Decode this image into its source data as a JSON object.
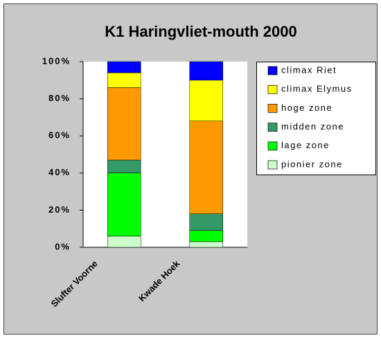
{
  "chart_data": {
    "type": "stacked_bar",
    "title": "K1 Haringvliet-mouth 2000",
    "categories": [
      "Slufter Voorne",
      "Kwade Hoek"
    ],
    "series": [
      {
        "name": "pionier zone",
        "color": "#ccffcc",
        "values": [
          6,
          3
        ]
      },
      {
        "name": "lage zone",
        "color": "#00ff00",
        "values": [
          34,
          6
        ]
      },
      {
        "name": "midden zone",
        "color": "#339966",
        "values": [
          7,
          9
        ]
      },
      {
        "name": "hoge zone",
        "color": "#ff9900",
        "values": [
          39,
          50
        ]
      },
      {
        "name": "climax Elymus",
        "color": "#ffff00",
        "values": [
          8,
          22
        ]
      },
      {
        "name": "climax Riet",
        "color": "#0000ff",
        "values": [
          6,
          10
        ]
      }
    ],
    "ylim": [
      0,
      100
    ],
    "yticks": [
      {
        "value": 0,
        "label": "0%"
      },
      {
        "value": 20,
        "label": "20%"
      },
      {
        "value": 40,
        "label": "40%"
      },
      {
        "value": 60,
        "label": "60%"
      },
      {
        "value": 80,
        "label": "80%"
      },
      {
        "value": 100,
        "label": "100%"
      }
    ]
  }
}
